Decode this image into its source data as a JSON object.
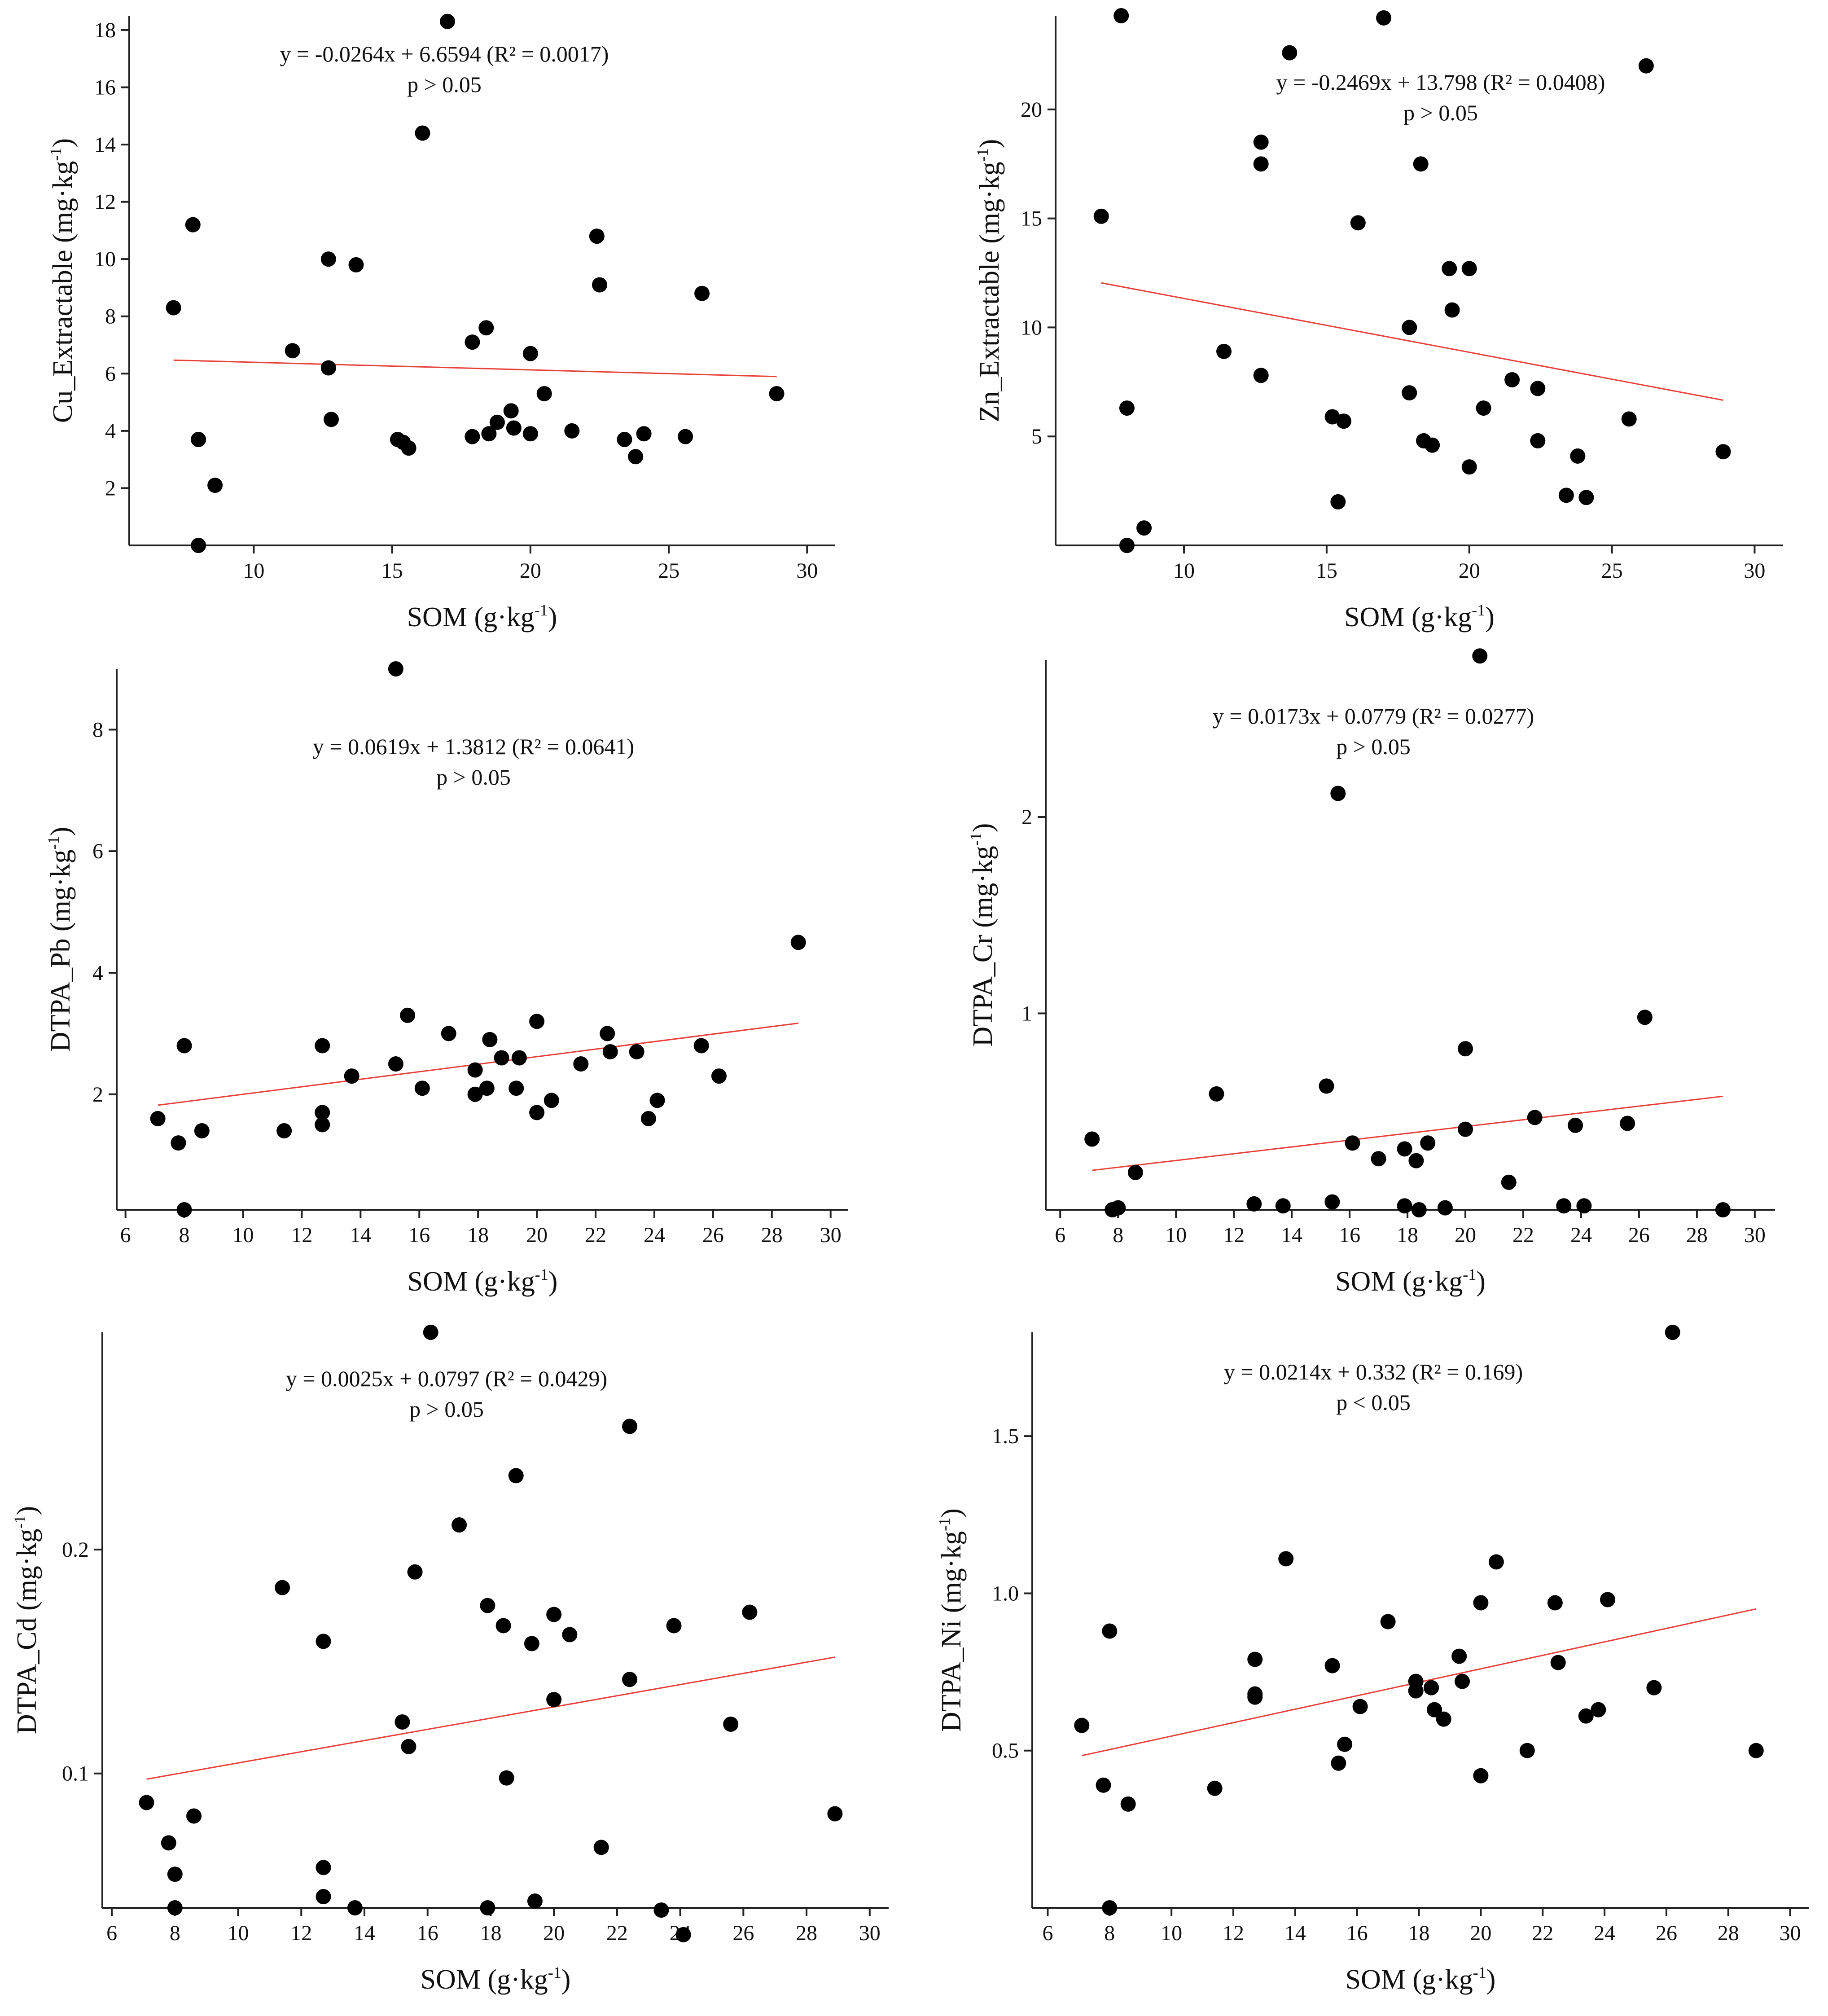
{
  "chart_data": [
    {
      "type": "scatter",
      "xlabel": "SOM (g·kg",
      "xlabel_sup": "-1",
      "xlabel_end": ")",
      "ylabel": "Cu_Extractable (mg·kg",
      "ylabel_sup": "-1",
      "ylabel_end": ")",
      "equation": "y = -0.0264x + 6.6594 (R² = 0.0017)",
      "pvalue": "p > 0.05",
      "xlim": [
        5.5,
        31
      ],
      "ylim": [
        0,
        18.5
      ],
      "xticks": [
        10,
        15,
        20,
        25,
        30
      ],
      "yticks": [
        2,
        4,
        6,
        8,
        10,
        12,
        14,
        16,
        18
      ],
      "trend": {
        "slope": -0.0264,
        "intercept": 6.6594,
        "x_range": [
          7.1,
          28.9
        ]
      },
      "trend_color": "#e8403a",
      "point_color": "#000000",
      "points": [
        [
          7.1,
          8.3
        ],
        [
          7.8,
          11.2
        ],
        [
          8.0,
          3.7
        ],
        [
          8.0,
          0.0
        ],
        [
          8.6,
          2.1
        ],
        [
          11.4,
          6.8
        ],
        [
          12.7,
          10.0
        ],
        [
          12.7,
          6.2
        ],
        [
          12.8,
          4.4
        ],
        [
          13.7,
          9.8
        ],
        [
          15.2,
          3.7
        ],
        [
          15.4,
          3.6
        ],
        [
          15.6,
          3.4
        ],
        [
          16.1,
          14.4
        ],
        [
          17.0,
          18.3
        ],
        [
          17.9,
          7.1
        ],
        [
          17.9,
          3.8
        ],
        [
          18.4,
          7.6
        ],
        [
          18.5,
          3.9
        ],
        [
          18.8,
          4.3
        ],
        [
          19.3,
          4.7
        ],
        [
          19.4,
          4.1
        ],
        [
          20.0,
          6.7
        ],
        [
          20.0,
          3.9
        ],
        [
          20.5,
          5.3
        ],
        [
          21.5,
          4.0
        ],
        [
          22.4,
          10.8
        ],
        [
          22.5,
          9.1
        ],
        [
          23.4,
          3.7
        ],
        [
          23.8,
          3.1
        ],
        [
          24.1,
          3.9
        ],
        [
          25.6,
          3.8
        ],
        [
          26.2,
          8.8
        ],
        [
          28.9,
          5.3
        ]
      ]
    },
    {
      "type": "scatter",
      "xlabel": "SOM (g·kg",
      "xlabel_sup": "-1",
      "xlabel_end": ")",
      "ylabel": "Zn_Extractable (mg·kg",
      "ylabel_sup": "-1",
      "ylabel_end": ")",
      "equation": "y = -0.2469x + 13.798 (R² = 0.0408)",
      "pvalue": "p > 0.05",
      "xlim": [
        5.5,
        31
      ],
      "ylim": [
        0,
        24.3
      ],
      "xticks": [
        10,
        15,
        20,
        25,
        30
      ],
      "yticks": [
        5,
        10,
        15,
        20
      ],
      "trend": {
        "slope": -0.2469,
        "intercept": 13.798,
        "x_range": [
          7.1,
          28.9
        ]
      },
      "trend_color": "#e8403a",
      "point_color": "#000000",
      "points": [
        [
          7.1,
          15.1
        ],
        [
          7.8,
          24.3
        ],
        [
          8.0,
          6.3
        ],
        [
          8.0,
          0.0
        ],
        [
          8.6,
          0.8
        ],
        [
          11.4,
          8.9
        ],
        [
          12.7,
          18.5
        ],
        [
          12.7,
          17.5
        ],
        [
          12.7,
          7.8
        ],
        [
          13.7,
          22.6
        ],
        [
          15.2,
          5.9
        ],
        [
          15.4,
          2.0
        ],
        [
          15.6,
          5.7
        ],
        [
          16.1,
          14.8
        ],
        [
          17.0,
          24.2
        ],
        [
          17.9,
          10.0
        ],
        [
          17.9,
          7.0
        ],
        [
          18.3,
          17.5
        ],
        [
          18.4,
          4.8
        ],
        [
          18.7,
          4.6
        ],
        [
          19.3,
          12.7
        ],
        [
          19.4,
          10.8
        ],
        [
          20.0,
          12.7
        ],
        [
          20.0,
          3.6
        ],
        [
          20.5,
          6.3
        ],
        [
          21.5,
          7.6
        ],
        [
          22.4,
          7.2
        ],
        [
          22.4,
          4.8
        ],
        [
          23.4,
          2.3
        ],
        [
          23.8,
          4.1
        ],
        [
          24.1,
          2.2
        ],
        [
          25.6,
          5.8
        ],
        [
          26.2,
          22.0
        ],
        [
          28.9,
          4.3
        ]
      ]
    },
    {
      "type": "scatter",
      "xlabel": "SOM (g·kg",
      "xlabel_sup": "-1",
      "xlabel_end": ")",
      "ylabel": "DTPA_Pb (mg·kg",
      "ylabel_sup": "-1",
      "ylabel_end": ")",
      "equation": "y = 0.0619x + 1.3812 (R² = 0.0641)",
      "pvalue": "p > 0.05",
      "xlim": [
        5.7,
        30.6
      ],
      "ylim": [
        0.1,
        9.0
      ],
      "xticks": [
        6,
        8,
        10,
        12,
        14,
        16,
        18,
        20,
        22,
        24,
        26,
        28,
        30
      ],
      "yticks": [
        2,
        4,
        6,
        8
      ],
      "trend": {
        "slope": 0.0619,
        "intercept": 1.3812,
        "x_range": [
          7.1,
          28.9
        ]
      },
      "trend_color": "#e8403a",
      "point_color": "#000000",
      "points": [
        [
          7.1,
          1.6
        ],
        [
          7.8,
          1.2
        ],
        [
          8.0,
          2.8
        ],
        [
          8.0,
          0.1
        ],
        [
          8.6,
          1.4
        ],
        [
          11.4,
          1.4
        ],
        [
          12.7,
          2.8
        ],
        [
          12.7,
          1.7
        ],
        [
          12.7,
          1.5
        ],
        [
          13.7,
          2.3
        ],
        [
          15.2,
          2.5
        ],
        [
          15.2,
          9.0
        ],
        [
          15.6,
          3.3
        ],
        [
          16.1,
          2.1
        ],
        [
          17.0,
          3.0
        ],
        [
          17.9,
          2.4
        ],
        [
          17.9,
          2.0
        ],
        [
          18.3,
          2.1
        ],
        [
          18.4,
          2.9
        ],
        [
          18.8,
          2.6
        ],
        [
          19.3,
          2.1
        ],
        [
          19.4,
          2.6
        ],
        [
          20.0,
          3.2
        ],
        [
          20.0,
          1.7
        ],
        [
          20.5,
          1.9
        ],
        [
          21.5,
          2.5
        ],
        [
          22.4,
          3.0
        ],
        [
          22.5,
          2.7
        ],
        [
          23.4,
          2.7
        ],
        [
          23.8,
          1.6
        ],
        [
          24.1,
          1.9
        ],
        [
          25.6,
          2.8
        ],
        [
          26.2,
          2.3
        ],
        [
          28.9,
          4.5
        ]
      ]
    },
    {
      "type": "scatter",
      "xlabel": "SOM (g·kg",
      "xlabel_sup": "-1",
      "xlabel_end": ")",
      "ylabel": "DTPA_Cr (mg·kg",
      "ylabel_sup": "-1",
      "ylabel_end": ")",
      "equation": "y = 0.0173x + 0.0779 (R² = 0.0277)",
      "pvalue": "p > 0.05",
      "xlim": [
        5.5,
        30.7
      ],
      "ylim": [
        0,
        2.8
      ],
      "xticks": [
        6,
        8,
        10,
        12,
        14,
        16,
        18,
        20,
        22,
        24,
        26,
        28,
        30
      ],
      "yticks": [
        1,
        2
      ],
      "trend": {
        "slope": 0.0173,
        "intercept": 0.0779,
        "x_range": [
          7.1,
          28.9
        ]
      },
      "trend_color": "#e8403a",
      "point_color": "#000000",
      "points": [
        [
          7.1,
          0.36
        ],
        [
          7.8,
          0.0
        ],
        [
          8.0,
          0.01
        ],
        [
          8.6,
          0.19
        ],
        [
          11.4,
          0.59
        ],
        [
          12.7,
          0.03
        ],
        [
          13.7,
          0.02
        ],
        [
          15.2,
          0.63
        ],
        [
          15.4,
          0.04
        ],
        [
          15.6,
          2.12
        ],
        [
          16.1,
          0.34
        ],
        [
          17.0,
          0.26
        ],
        [
          17.9,
          0.31
        ],
        [
          17.9,
          0.02
        ],
        [
          18.3,
          0.25
        ],
        [
          18.4,
          0.0
        ],
        [
          18.7,
          0.34
        ],
        [
          19.3,
          0.01
        ],
        [
          20.0,
          0.82
        ],
        [
          20.0,
          0.41
        ],
        [
          20.5,
          2.82
        ],
        [
          21.5,
          0.14
        ],
        [
          22.4,
          0.47
        ],
        [
          23.4,
          0.02
        ],
        [
          23.8,
          0.43
        ],
        [
          24.1,
          0.02
        ],
        [
          25.6,
          0.44
        ],
        [
          26.2,
          0.98
        ],
        [
          28.9,
          0.0
        ]
      ]
    },
    {
      "type": "scatter",
      "xlabel": "SOM (g·kg",
      "xlabel_sup": "-1",
      "xlabel_end": ")",
      "ylabel": "DTPA_Cd (mg·kg",
      "ylabel_sup": "-1",
      "ylabel_end": ")",
      "equation": "y = 0.0025x + 0.0797 (R² = 0.0429)",
      "pvalue": "p > 0.05",
      "xlim": [
        5.7,
        30.6
      ],
      "ylim": [
        0.04,
        0.297
      ],
      "xticks": [
        6,
        8,
        10,
        12,
        14,
        16,
        18,
        20,
        22,
        24,
        26,
        28,
        30
      ],
      "yticks": [
        0.1,
        0.2
      ],
      "trend": {
        "slope": 0.0025,
        "intercept": 0.0797,
        "x_range": [
          7.1,
          28.9
        ]
      },
      "trend_color": "#e8403a",
      "point_color": "#000000",
      "points": [
        [
          7.1,
          0.087
        ],
        [
          7.8,
          0.069
        ],
        [
          8.0,
          0.055
        ],
        [
          8.0,
          0.04
        ],
        [
          8.6,
          0.081
        ],
        [
          11.4,
          0.183
        ],
        [
          12.7,
          0.159
        ],
        [
          12.7,
          0.058
        ],
        [
          12.7,
          0.045
        ],
        [
          13.7,
          0.04
        ],
        [
          15.2,
          0.123
        ],
        [
          15.4,
          0.112
        ],
        [
          15.6,
          0.19
        ],
        [
          16.1,
          0.297
        ],
        [
          17.0,
          0.211
        ],
        [
          17.9,
          0.175
        ],
        [
          17.9,
          0.04
        ],
        [
          18.4,
          0.166
        ],
        [
          18.5,
          0.098
        ],
        [
          18.8,
          0.233
        ],
        [
          19.3,
          0.158
        ],
        [
          19.4,
          0.043
        ],
        [
          20.0,
          0.171
        ],
        [
          20.0,
          0.133
        ],
        [
          20.5,
          0.162
        ],
        [
          21.5,
          0.067
        ],
        [
          22.4,
          0.255
        ],
        [
          22.4,
          0.142
        ],
        [
          23.4,
          0.039
        ],
        [
          23.8,
          0.166
        ],
        [
          24.1,
          0.028
        ],
        [
          25.6,
          0.122
        ],
        [
          26.2,
          0.172
        ],
        [
          28.9,
          0.082
        ]
      ]
    },
    {
      "type": "scatter",
      "xlabel": "SOM (g·kg",
      "xlabel_sup": "-1",
      "xlabel_end": ")",
      "ylabel": "DTPA_Ni (mg·kg",
      "ylabel_sup": "-1",
      "ylabel_end": ")",
      "equation": "y = 0.0214x + 0.332 (R² = 0.169)",
      "pvalue": "p < 0.05",
      "xlim": [
        5.5,
        30.6
      ],
      "ylim": [
        0.0,
        1.83
      ],
      "xticks": [
        6,
        8,
        10,
        12,
        14,
        16,
        18,
        20,
        22,
        24,
        26,
        28,
        30
      ],
      "yticks": [
        0.5,
        1.0,
        1.5
      ],
      "ytick_labels": [
        "0.5",
        "1.0",
        "1.5"
      ],
      "trend": {
        "slope": 0.0214,
        "intercept": 0.332,
        "x_range": [
          7.1,
          28.9
        ]
      },
      "trend_color": "#e8403a",
      "point_color": "#000000",
      "points": [
        [
          7.1,
          0.58
        ],
        [
          7.8,
          0.39
        ],
        [
          8.0,
          0.88
        ],
        [
          8.0,
          0.0
        ],
        [
          8.6,
          0.33
        ],
        [
          11.4,
          0.38
        ],
        [
          12.7,
          0.79
        ],
        [
          12.7,
          0.68
        ],
        [
          12.7,
          0.67
        ],
        [
          13.7,
          1.11
        ],
        [
          15.2,
          0.77
        ],
        [
          15.4,
          0.46
        ],
        [
          15.6,
          0.52
        ],
        [
          16.1,
          0.64
        ],
        [
          17.0,
          0.91
        ],
        [
          17.9,
          0.72
        ],
        [
          17.9,
          0.69
        ],
        [
          18.4,
          0.7
        ],
        [
          18.5,
          0.63
        ],
        [
          18.8,
          0.6
        ],
        [
          19.3,
          0.8
        ],
        [
          19.4,
          0.72
        ],
        [
          20.0,
          0.97
        ],
        [
          20.0,
          0.42
        ],
        [
          20.5,
          1.1
        ],
        [
          21.5,
          0.5
        ],
        [
          22.4,
          0.97
        ],
        [
          22.5,
          0.78
        ],
        [
          23.4,
          0.61
        ],
        [
          23.8,
          0.63
        ],
        [
          24.1,
          0.98
        ],
        [
          25.6,
          0.7
        ],
        [
          26.2,
          1.83
        ],
        [
          28.9,
          0.5
        ]
      ]
    }
  ]
}
